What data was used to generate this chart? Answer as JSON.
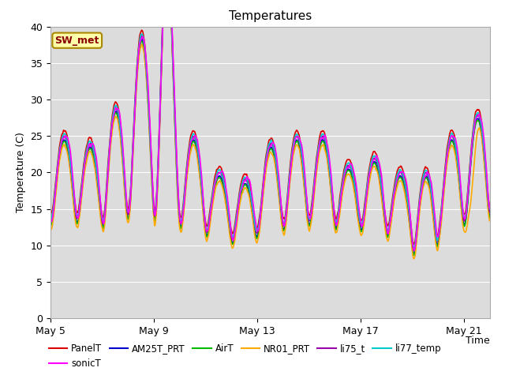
{
  "title": "Temperatures",
  "xlabel": "Time",
  "ylabel": "Temperature (C)",
  "ylim": [
    0,
    40
  ],
  "yticks": [
    0,
    5,
    10,
    15,
    20,
    25,
    30,
    35,
    40
  ],
  "background_color": "#dcdcdc",
  "series_order": [
    "PanelT",
    "AM25T_PRT",
    "AirT",
    "NR01_PRT",
    "li75_t",
    "li77_temp",
    "sonicT"
  ],
  "series": {
    "PanelT": {
      "color": "#dd0000",
      "lw": 1.2
    },
    "AM25T_PRT": {
      "color": "#0000cc",
      "lw": 1.2
    },
    "AirT": {
      "color": "#00bb00",
      "lw": 1.2
    },
    "NR01_PRT": {
      "color": "#ffaa00",
      "lw": 1.2
    },
    "li75_t": {
      "color": "#9900aa",
      "lw": 1.2
    },
    "li77_temp": {
      "color": "#00cccc",
      "lw": 1.2
    },
    "sonicT": {
      "color": "#ff00ff",
      "lw": 1.2
    }
  },
  "annotation_text": "SW_met",
  "n_days": 17,
  "xtick_labels": [
    "May 5",
    "May 9",
    "May 13",
    "May 17",
    "May 21"
  ],
  "xtick_positions": [
    0,
    4,
    8,
    12,
    16
  ],
  "legend_row1": [
    "PanelT",
    "AM25T_PRT",
    "AirT",
    "NR01_PRT",
    "li75_t",
    "li77_temp"
  ],
  "legend_row2": [
    "sonicT"
  ]
}
